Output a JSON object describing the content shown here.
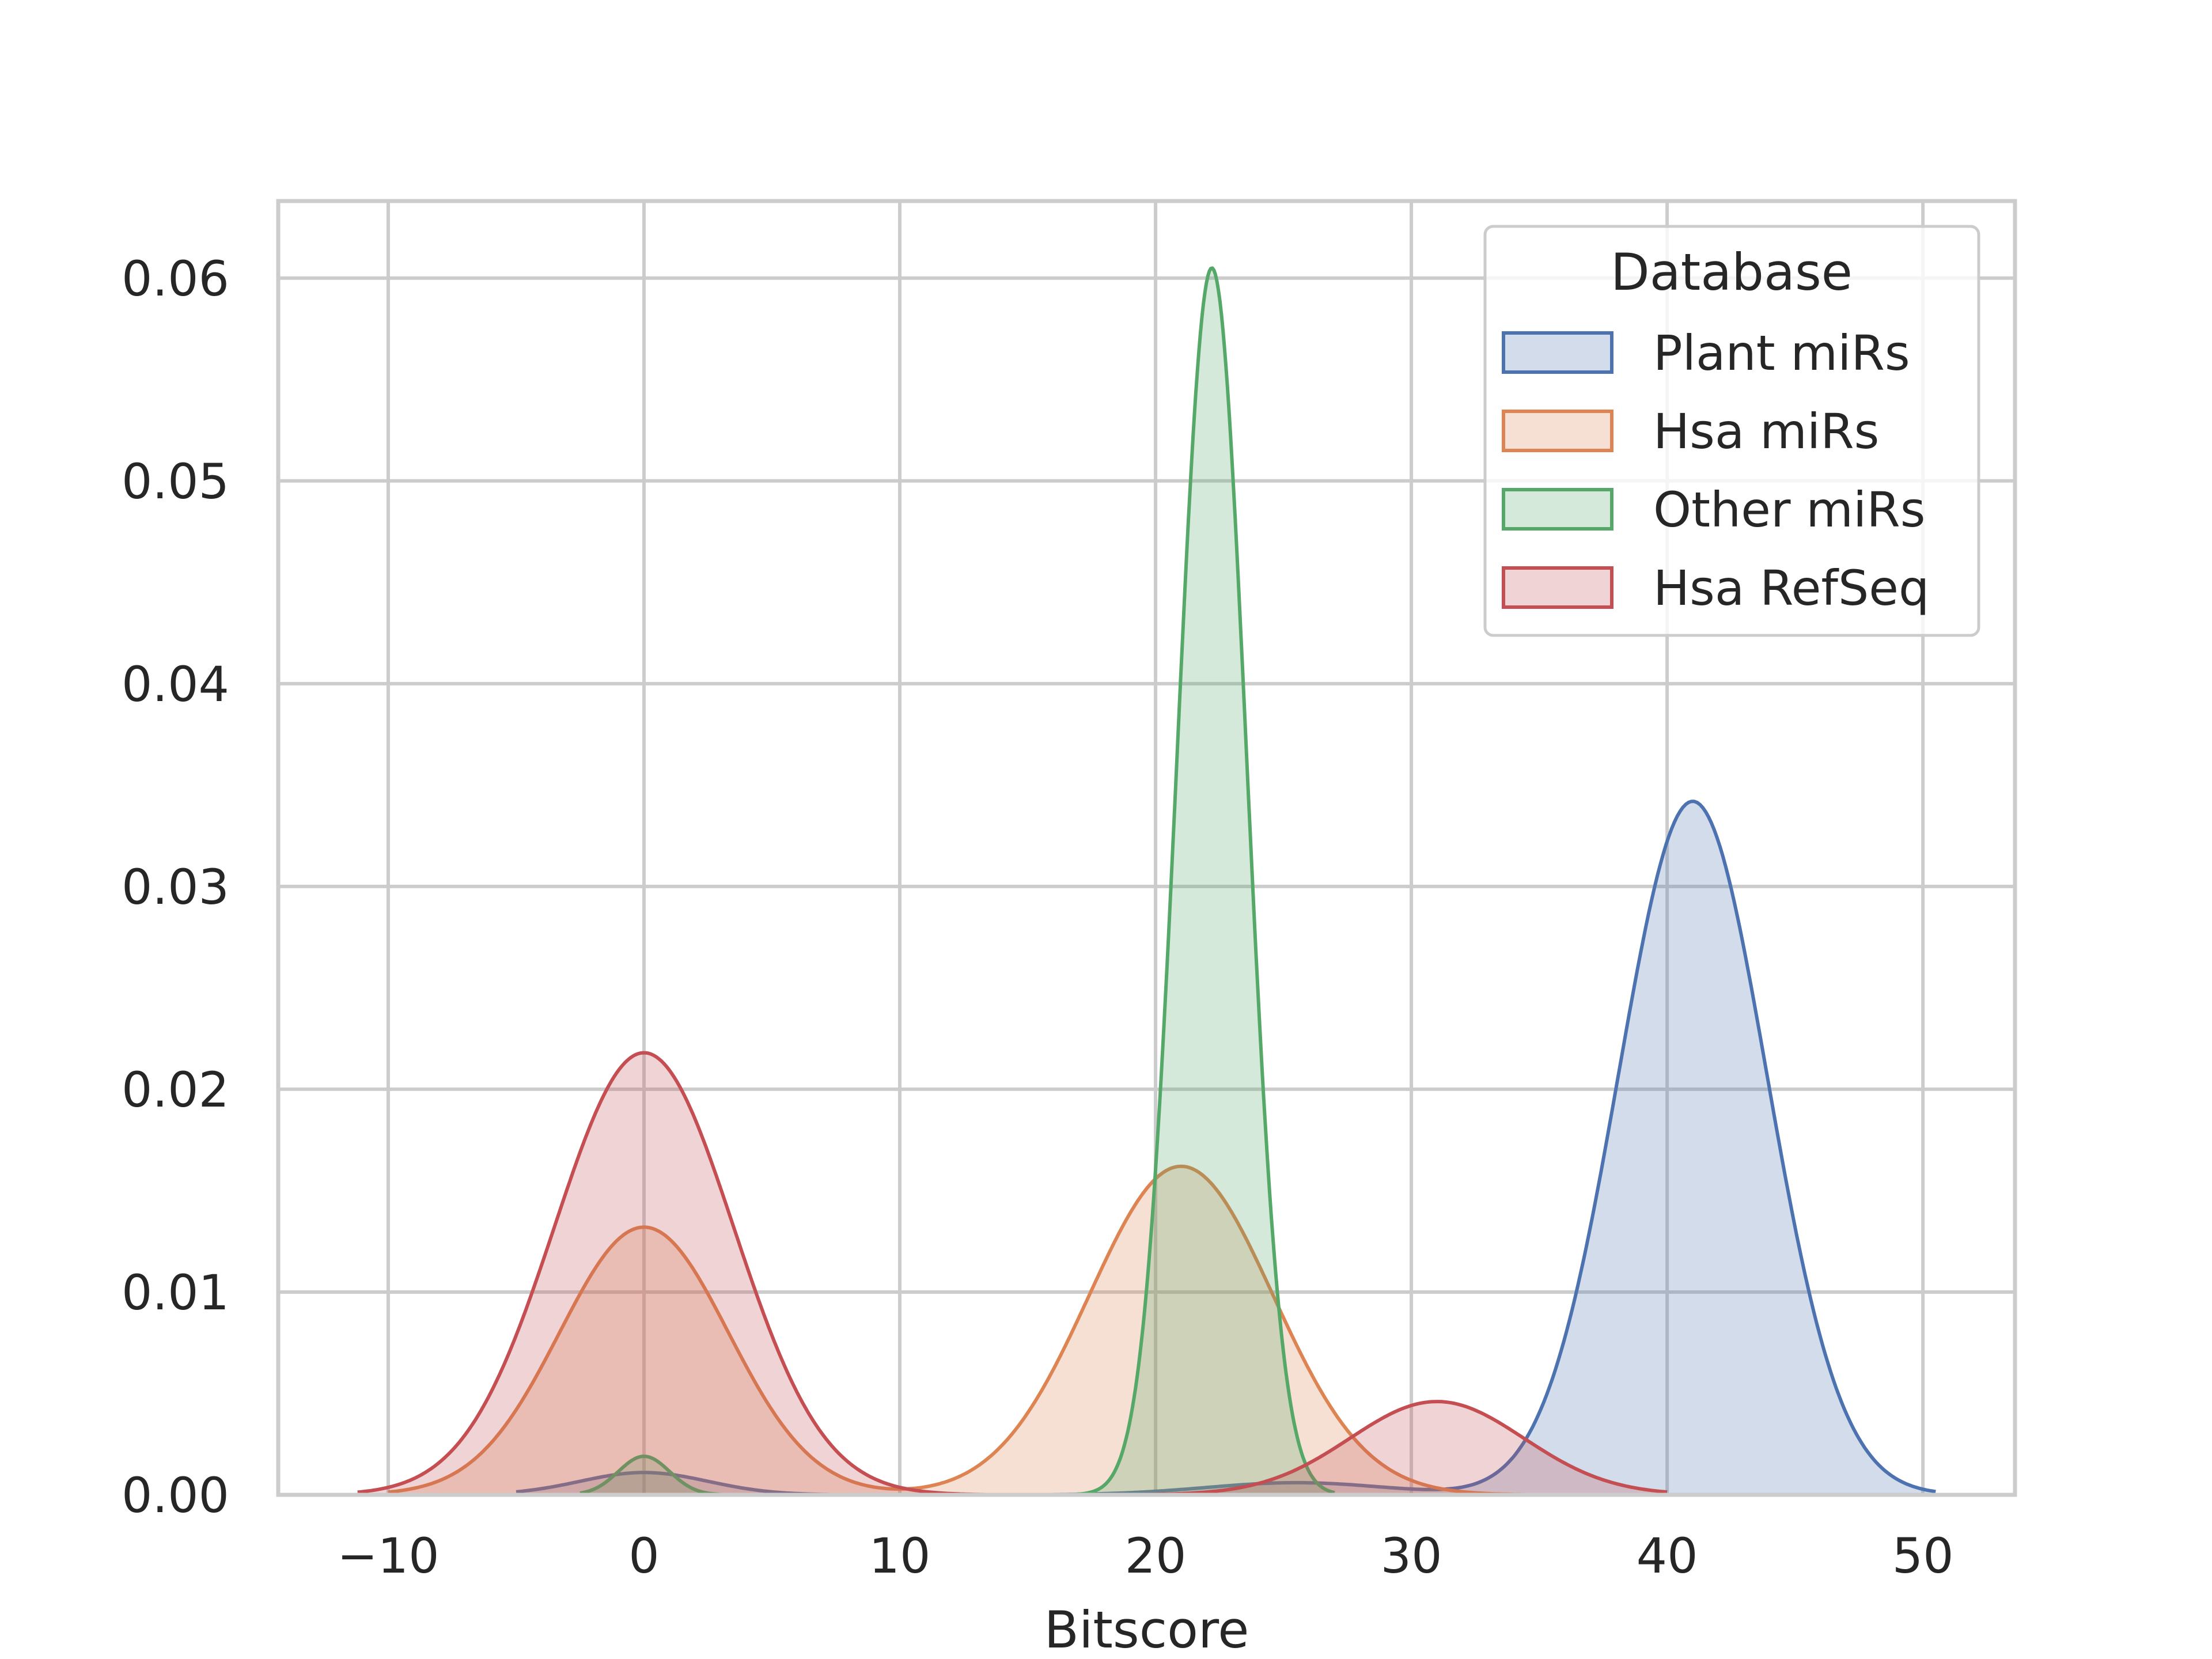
{
  "chart_data": {
    "type": "area",
    "title": "",
    "xlabel": "Bitscore",
    "ylabel": "",
    "xlim": [
      -14.3,
      53.6
    ],
    "ylim": [
      0,
      0.0638
    ],
    "x_ticks": [
      -10,
      0,
      10,
      20,
      30,
      40,
      50
    ],
    "x_tick_labels": [
      "−10",
      "0",
      "10",
      "20",
      "30",
      "40",
      "50"
    ],
    "y_ticks": [
      0,
      0.01,
      0.02,
      0.03,
      0.04,
      0.05,
      0.06
    ],
    "y_tick_labels": [
      "0.00",
      "0.01",
      "0.02",
      "0.03",
      "0.04",
      "0.05",
      "0.06"
    ],
    "grid": true,
    "legend": {
      "title": "Database",
      "placement": "top-right"
    },
    "series": [
      {
        "name": "Plant miRs",
        "color": "#4c72b0",
        "x_range": [
          -5,
          50.5
        ],
        "components": [
          {
            "mu": 0,
            "sigma": 2.5,
            "amp": 0.0011
          },
          {
            "mu": 25.5,
            "sigma": 3.5,
            "amp": 0.0006
          },
          {
            "mu": 41,
            "sigma": 2.9,
            "amp": 0.0342
          }
        ]
      },
      {
        "name": "Hsa miRs",
        "color": "#dd8452",
        "x_range": [
          -10,
          35.5
        ],
        "components": [
          {
            "mu": 0,
            "sigma": 3.3,
            "amp": 0.0132
          },
          {
            "mu": 21,
            "sigma": 3.6,
            "amp": 0.0162
          }
        ]
      },
      {
        "name": "Other miRs",
        "color": "#55a868",
        "x_range": [
          -2.5,
          27
        ],
        "components": [
          {
            "mu": 0,
            "sigma": 1.0,
            "amp": 0.0019
          },
          {
            "mu": 22.2,
            "sigma": 1.35,
            "amp": 0.0605
          }
        ]
      },
      {
        "name": "Hsa RefSeq",
        "color": "#c44e52",
        "x_range": [
          -11.2,
          40
        ],
        "components": [
          {
            "mu": 0,
            "sigma": 3.5,
            "amp": 0.0218
          },
          {
            "mu": 31,
            "sigma": 3.4,
            "amp": 0.0046
          }
        ]
      }
    ]
  }
}
